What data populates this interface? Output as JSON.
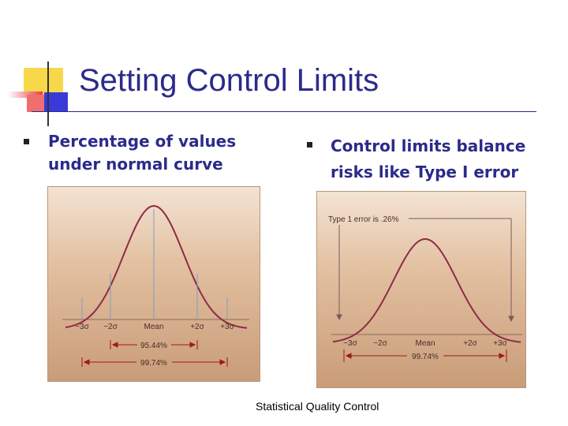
{
  "slide": {
    "title": "Setting Control Limits",
    "bullets": [
      {
        "line1": "Percentage of values",
        "line2": "under normal curve"
      },
      {
        "line1": "Control limits balance",
        "line2": "risks like Type I error"
      }
    ],
    "footer": "Statistical Quality Control",
    "accent_colors": {
      "yellow": "#f7d84a",
      "red": "#e83c3c",
      "blue": "#3a3ad8",
      "title": "#2b2b8a",
      "curve": "#8e2b47",
      "tail_fill": "#3b82d4"
    }
  },
  "figures": {
    "left": {
      "ticks": [
        "−3σ",
        "−2σ",
        "Mean",
        "+2σ",
        "+3σ"
      ],
      "range_95": "95.44%",
      "range_99": "99.74%"
    },
    "right": {
      "annotation": "Type 1 error is .26%",
      "ticks": [
        "−3σ",
        "−2σ",
        "Mean",
        "+2σ",
        "+3σ"
      ],
      "range_99": "99.74%"
    }
  }
}
